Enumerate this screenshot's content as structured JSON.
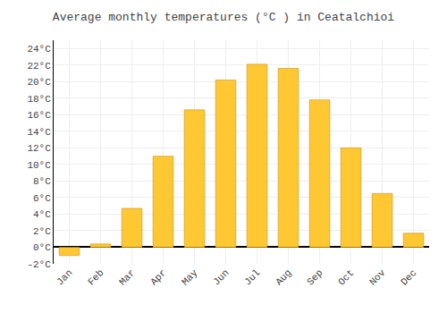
{
  "chart_data": {
    "type": "bar",
    "title": "Average monthly temperatures (°C ) in Ceatalchioi",
    "categories": [
      "Jan",
      "Feb",
      "Mar",
      "Apr",
      "May",
      "Jun",
      "Jul",
      "Aug",
      "Sep",
      "Oct",
      "Nov",
      "Dec"
    ],
    "values": [
      -1.0,
      0.4,
      4.7,
      11.0,
      16.6,
      20.2,
      22.1,
      21.6,
      17.8,
      12.0,
      6.5,
      1.7
    ],
    "color": "#FFC832",
    "ylim": [
      -2,
      25
    ],
    "yticks": [
      {
        "value": -2,
        "label": "-2°C"
      },
      {
        "value": 0,
        "label": "0°C"
      },
      {
        "value": 2,
        "label": "2°C"
      },
      {
        "value": 4,
        "label": "4°C"
      },
      {
        "value": 6,
        "label": "6°C"
      },
      {
        "value": 8,
        "label": "8°C"
      },
      {
        "value": 10,
        "label": "10°C"
      },
      {
        "value": 12,
        "label": "12°C"
      },
      {
        "value": 14,
        "label": "14°C"
      },
      {
        "value": 16,
        "label": "16°C"
      },
      {
        "value": 18,
        "label": "18°C"
      },
      {
        "value": 20,
        "label": "20°C"
      },
      {
        "value": 22,
        "label": "22°C"
      },
      {
        "value": 24,
        "label": "24°C"
      }
    ],
    "grid": true
  }
}
